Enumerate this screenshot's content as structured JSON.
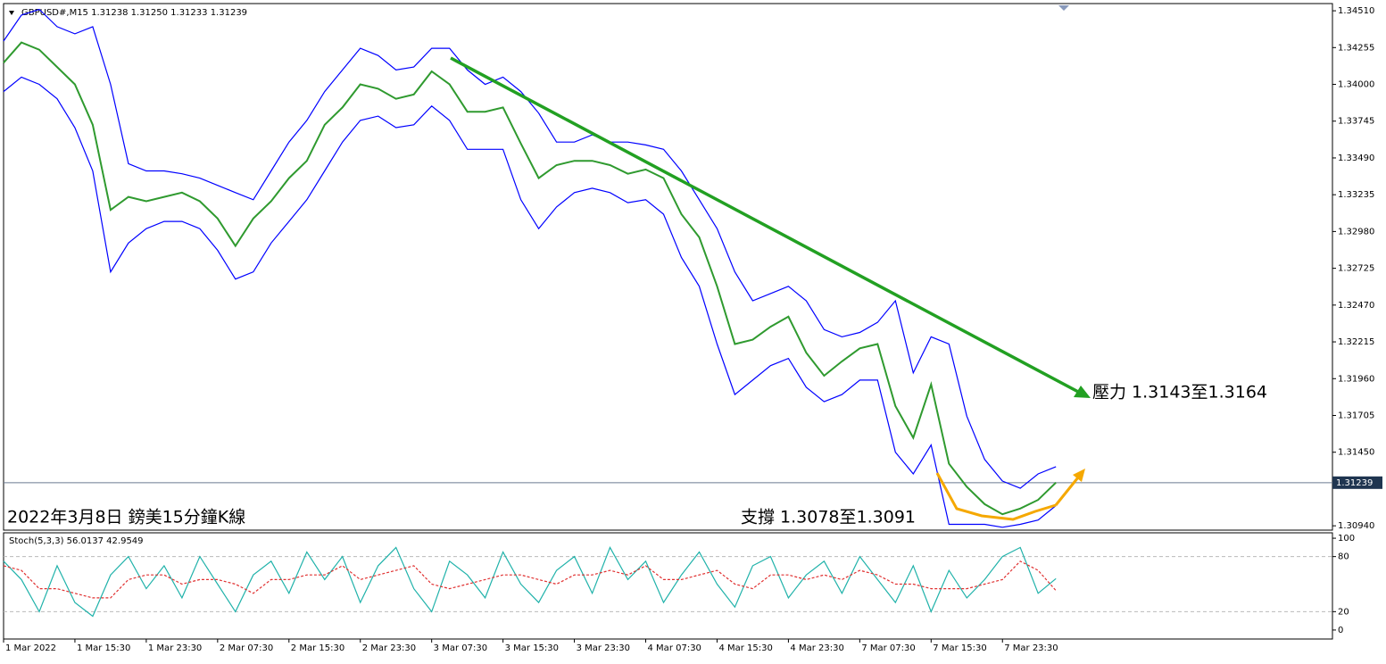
{
  "chart_data": [
    {
      "type": "line",
      "symbol_info": "GBPUSD#,M15  1.31238 1.31250 1.31233 1.31239",
      "annotations": [
        "壓力 1.3143至1.3164",
        "支撐 1.3078至1.3091",
        "2022年3月8日 鎊美15分鐘K線"
      ],
      "last_price": 1.31239,
      "x": [
        0,
        8,
        16,
        24,
        32,
        40,
        48,
        56,
        64,
        72,
        80,
        88,
        96,
        104,
        112,
        120,
        128,
        136,
        144,
        152,
        160,
        168,
        176,
        184,
        192,
        200,
        208,
        216,
        224,
        232,
        240,
        248,
        256,
        264,
        272,
        280,
        288,
        296,
        304,
        312,
        320,
        328,
        336,
        344,
        352,
        360,
        368,
        376,
        384,
        392,
        400,
        408,
        416,
        424,
        432,
        440,
        448,
        456,
        464,
        472
      ],
      "xlim": [
        0,
        596
      ],
      "xticks": [
        {
          "value": 0,
          "label": "1 Mar 2022"
        },
        {
          "value": 32,
          "label": "1 Mar 15:30"
        },
        {
          "value": 64,
          "label": "1 Mar 23:30"
        },
        {
          "value": 96,
          "label": "2 Mar 07:30"
        },
        {
          "value": 128,
          "label": "2 Mar 15:30"
        },
        {
          "value": 160,
          "label": "2 Mar 23:30"
        },
        {
          "value": 192,
          "label": "3 Mar 07:30"
        },
        {
          "value": 224,
          "label": "3 Mar 15:30"
        },
        {
          "value": 256,
          "label": "3 Mar 23:30"
        },
        {
          "value": 288,
          "label": "4 Mar 07:30"
        },
        {
          "value": 320,
          "label": "4 Mar 15:30"
        },
        {
          "value": 352,
          "label": "4 Mar 23:30"
        },
        {
          "value": 384,
          "label": "7 Mar 07:30"
        },
        {
          "value": 416,
          "label": "7 Mar 15:30"
        },
        {
          "value": 448,
          "label": "7 Mar 23:30"
        }
      ],
      "ylim": [
        1.3091,
        1.3456
      ],
      "yticks": [
        {
          "value": 1.3451,
          "label": "1.34510"
        },
        {
          "value": 1.34255,
          "label": "1.34255"
        },
        {
          "value": 1.34,
          "label": "1.34000"
        },
        {
          "value": 1.33745,
          "label": "1.33745"
        },
        {
          "value": 1.3349,
          "label": "1.33490"
        },
        {
          "value": 1.33235,
          "label": "1.33235"
        },
        {
          "value": 1.3298,
          "label": "1.32980"
        },
        {
          "value": 1.32725,
          "label": "1.32725"
        },
        {
          "value": 1.3247,
          "label": "1.32470"
        },
        {
          "value": 1.32215,
          "label": "1.32215"
        },
        {
          "value": 1.3196,
          "label": "1.31960"
        },
        {
          "value": 1.31705,
          "label": "1.31705"
        },
        {
          "value": 1.3145,
          "label": "1.31450"
        },
        {
          "value": 1.3094,
          "label": "1.30940"
        }
      ],
      "series": [
        {
          "name": "Close",
          "color": "#2f9a2f",
          "values": [
            1.3415,
            1.3429,
            1.3424,
            1.3412,
            1.34,
            1.3372,
            1.3313,
            1.3322,
            1.3319,
            1.3322,
            1.3325,
            1.3319,
            1.3307,
            1.3288,
            1.3307,
            1.3319,
            1.3335,
            1.3347,
            1.3372,
            1.3384,
            1.34,
            1.3397,
            1.339,
            1.3393,
            1.3409,
            1.34,
            1.3381,
            1.3381,
            1.3384,
            1.3359,
            1.3335,
            1.3344,
            1.3347,
            1.3347,
            1.3344,
            1.3338,
            1.3341,
            1.3335,
            1.331,
            1.3294,
            1.326,
            1.322,
            1.3223,
            1.3232,
            1.3239,
            1.3214,
            1.3198,
            1.3208,
            1.3217,
            1.322,
            1.3177,
            1.3155,
            1.3192,
            1.3137,
            1.3121,
            1.3109,
            1.3102,
            1.3106,
            1.3112,
            1.3124
          ]
        },
        {
          "name": "Upper",
          "color": "#0000ff",
          "values": [
            1.343,
            1.3448,
            1.3452,
            1.344,
            1.3435,
            1.344,
            1.34,
            1.3345,
            1.334,
            1.334,
            1.3338,
            1.3335,
            1.333,
            1.3325,
            1.332,
            1.334,
            1.336,
            1.3375,
            1.3395,
            1.341,
            1.3425,
            1.342,
            1.341,
            1.3412,
            1.3425,
            1.3425,
            1.341,
            1.34,
            1.3405,
            1.3395,
            1.338,
            1.336,
            1.336,
            1.3365,
            1.336,
            1.336,
            1.3358,
            1.3355,
            1.334,
            1.332,
            1.33,
            1.327,
            1.325,
            1.3255,
            1.326,
            1.325,
            1.323,
            1.3225,
            1.3228,
            1.3235,
            1.325,
            1.32,
            1.3225,
            1.322,
            1.317,
            1.314,
            1.3125,
            1.312,
            1.313,
            1.3135
          ]
        },
        {
          "name": "Lower",
          "color": "#0000ff",
          "values": [
            1.3395,
            1.3405,
            1.34,
            1.339,
            1.337,
            1.334,
            1.327,
            1.329,
            1.33,
            1.3305,
            1.3305,
            1.33,
            1.3285,
            1.3265,
            1.327,
            1.329,
            1.3305,
            1.332,
            1.334,
            1.336,
            1.3375,
            1.3378,
            1.337,
            1.3372,
            1.3385,
            1.3375,
            1.3355,
            1.3355,
            1.3355,
            1.332,
            1.33,
            1.3315,
            1.3325,
            1.3328,
            1.3325,
            1.3318,
            1.332,
            1.331,
            1.328,
            1.326,
            1.322,
            1.3185,
            1.3195,
            1.3205,
            1.321,
            1.319,
            1.318,
            1.3185,
            1.3195,
            1.3195,
            1.3145,
            1.313,
            1.315,
            1.3095,
            1.3095,
            1.3095,
            1.3093,
            1.3095,
            1.3098,
            1.3108
          ]
        }
      ]
    },
    {
      "type": "line",
      "title": "Stoch(5,3,3) 56.0137 42.9549",
      "x": [
        0,
        8,
        16,
        24,
        32,
        40,
        48,
        56,
        64,
        72,
        80,
        88,
        96,
        104,
        112,
        120,
        128,
        136,
        144,
        152,
        160,
        168,
        176,
        184,
        192,
        200,
        208,
        216,
        224,
        232,
        240,
        248,
        256,
        264,
        272,
        280,
        288,
        296,
        304,
        312,
        320,
        328,
        336,
        344,
        352,
        360,
        368,
        376,
        384,
        392,
        400,
        408,
        416,
        424,
        432,
        440,
        448,
        456,
        464,
        472
      ],
      "xlim": [
        0,
        596
      ],
      "ylim": [
        -9.8,
        105.9
      ],
      "yticks": [
        100,
        80,
        20,
        0
      ],
      "levels": [
        80,
        20
      ],
      "series": [
        {
          "name": "%K",
          "color": "#20b2aa",
          "values": [
            75,
            55,
            20,
            70,
            30,
            15,
            60,
            80,
            45,
            70,
            35,
            80,
            50,
            20,
            60,
            75,
            40,
            85,
            55,
            80,
            30,
            70,
            90,
            45,
            20,
            75,
            60,
            35,
            85,
            50,
            30,
            65,
            80,
            40,
            90,
            55,
            75,
            30,
            60,
            85,
            50,
            25,
            70,
            80,
            35,
            60,
            75,
            40,
            80,
            55,
            30,
            70,
            20,
            65,
            35,
            55,
            80,
            90,
            40,
            56
          ]
        },
        {
          "name": "%D",
          "color": "#e03030",
          "values": [
            70,
            65,
            45,
            45,
            40,
            35,
            35,
            55,
            60,
            60,
            50,
            55,
            55,
            50,
            40,
            55,
            55,
            60,
            60,
            70,
            55,
            60,
            65,
            70,
            50,
            45,
            50,
            55,
            60,
            60,
            55,
            50,
            60,
            60,
            65,
            60,
            70,
            55,
            55,
            60,
            65,
            50,
            45,
            60,
            60,
            55,
            60,
            55,
            65,
            60,
            50,
            50,
            45,
            45,
            45,
            50,
            55,
            75,
            65,
            43
          ]
        }
      ]
    }
  ]
}
